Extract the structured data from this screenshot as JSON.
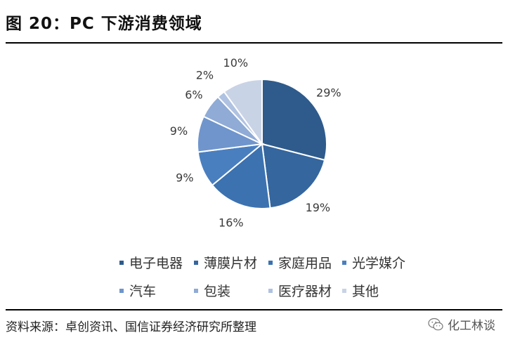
{
  "header": {
    "title": "图 20：PC 下游消费领域"
  },
  "chart_data": {
    "type": "pie",
    "categories": [
      "电子电器",
      "薄膜片材",
      "家庭用品",
      "光学媒介",
      "汽车",
      "包装",
      "医疗器材",
      "其他"
    ],
    "values": [
      29,
      19,
      16,
      9,
      9,
      6,
      2,
      10
    ],
    "labels": [
      "29%",
      "19%",
      "16%",
      "9%",
      "9%",
      "6%",
      "2%",
      "10%"
    ],
    "colors": [
      "#2E5B8C",
      "#35669E",
      "#3C72B0",
      "#4A7FBF",
      "#6F95CC",
      "#8FABD6",
      "#AFC2E1",
      "#C9D3E6"
    ],
    "legend_position": "bottom"
  },
  "source": {
    "text": "资料来源：卓创资讯、国信证券经济研究所整理"
  },
  "watermark": {
    "icon": "wechat-icon",
    "text": "化工林谈"
  }
}
